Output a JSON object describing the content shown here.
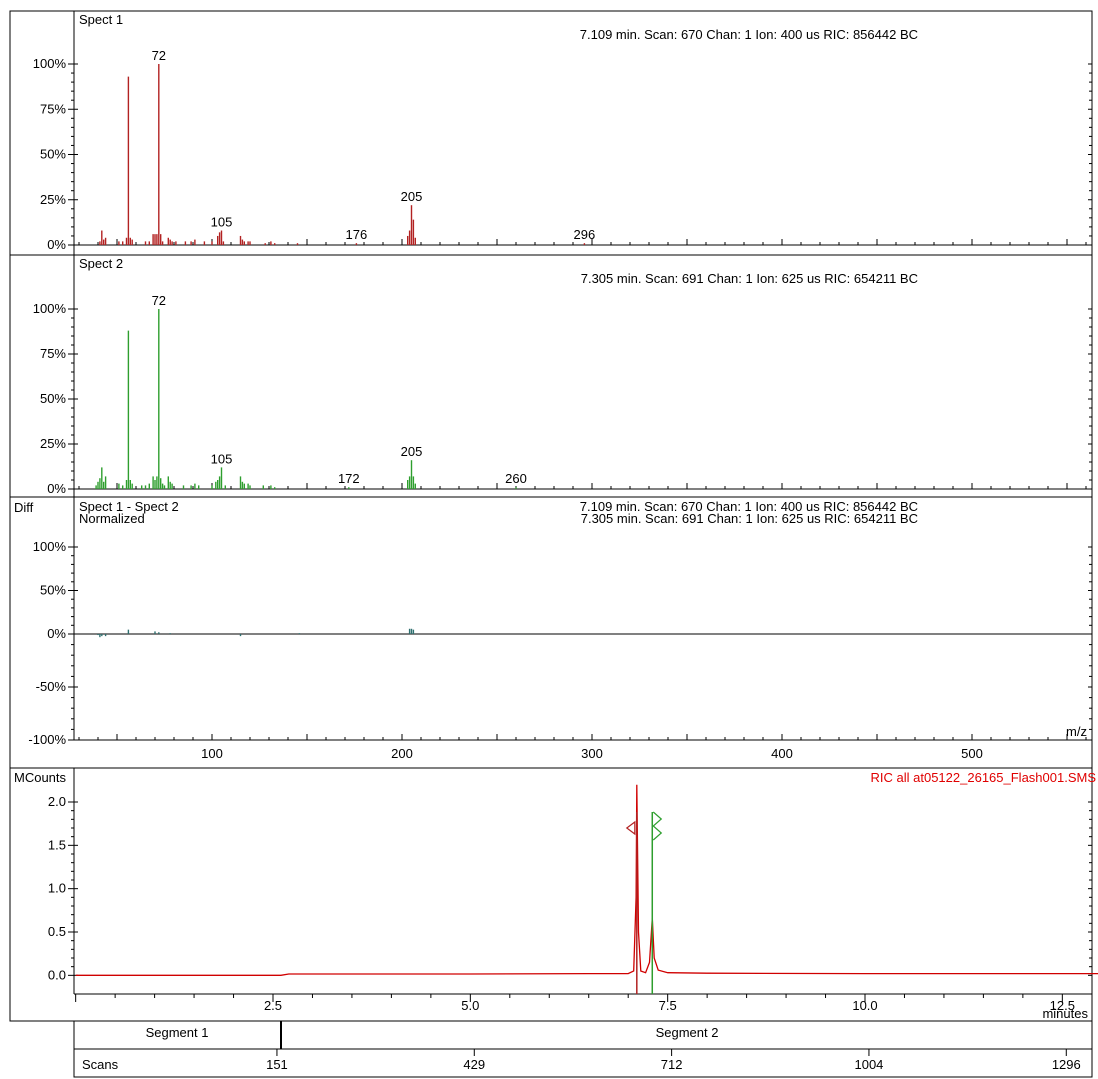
{
  "colors": {
    "spect1": "#b22222",
    "spect2": "#2e9e2e",
    "diff": "#2f6f6f",
    "ric_line": "#d00000",
    "ric_label": "#e00000"
  },
  "panels": {
    "spect1": {
      "label": "Spect 1",
      "info": "7.109 min. Scan: 670 Chan: 1 Ion: 400 us RIC: 856442 BC",
      "yticks": [
        "100%",
        "75%",
        "50%",
        "25%",
        "0%"
      ]
    },
    "spect2": {
      "label": "Spect 2",
      "info": "7.305 min. Scan: 691 Chan: 1 Ion: 625 us RIC: 654211 BC",
      "yticks": [
        "100%",
        "75%",
        "50%",
        "25%",
        "0%"
      ]
    },
    "diff": {
      "corner": "Diff",
      "label": "Spect 1 - Spect 2",
      "sublabel": "Normalized",
      "info1": "7.109 min. Scan: 670 Chan: 1 Ion: 400 us RIC: 856442 BC",
      "info2": "7.305 min. Scan: 691 Chan: 1 Ion: 625 us RIC: 654211 BC",
      "yticks": [
        "100%",
        "50%",
        "0%",
        "-50%",
        "-100%"
      ],
      "xticks": [
        "100",
        "200",
        "300",
        "400",
        "500"
      ],
      "xunit": "m/z"
    },
    "ric": {
      "ylabel": "MCounts",
      "label": "RIC all at05122_26165_Flash001.SMS",
      "yticks": [
        "2.0",
        "1.5",
        "1.0",
        "0.5",
        "0.0"
      ],
      "xticks": [
        "2.5",
        "5.0",
        "7.5",
        "10.0",
        "12.5"
      ],
      "xunit": "minutes"
    }
  },
  "segments": {
    "seg1": "Segment 1",
    "seg2": "Segment 2",
    "scans_label": "Scans",
    "scan_ticks": [
      "151",
      "429",
      "712",
      "1004",
      "1296"
    ]
  },
  "chart_data": [
    {
      "type": "bar",
      "name": "Spect 1",
      "xlim": [
        30,
        565
      ],
      "ylim": [
        0,
        100
      ],
      "peak_labels": [
        {
          "x": 72,
          "text": "72"
        },
        {
          "x": 105,
          "text": "105"
        },
        {
          "x": 176,
          "text": "176"
        },
        {
          "x": 205,
          "text": "205"
        },
        {
          "x": 296,
          "text": "296"
        }
      ],
      "x": [
        41,
        42,
        43,
        44,
        51,
        53,
        55,
        56,
        57,
        58,
        65,
        67,
        69,
        70,
        71,
        72,
        73,
        74,
        77,
        78,
        79,
        81,
        86,
        89,
        91,
        96,
        100,
        103,
        104,
        105,
        106,
        115,
        116,
        117,
        119,
        120,
        128,
        131,
        133,
        145,
        176,
        203,
        204,
        205,
        206,
        207,
        296
      ],
      "values": [
        2,
        8,
        3,
        4,
        2,
        2,
        4,
        93,
        4,
        3,
        2,
        2,
        6,
        6,
        6,
        100,
        6,
        2,
        4,
        3,
        2,
        2,
        2,
        2,
        3,
        2,
        2,
        5,
        7,
        8,
        2,
        5,
        3,
        2,
        2,
        2,
        1,
        2,
        1,
        1,
        1,
        5,
        8,
        22,
        14,
        4,
        1
      ]
    },
    {
      "type": "bar",
      "name": "Spect 2",
      "xlim": [
        30,
        565
      ],
      "ylim": [
        0,
        100
      ],
      "peak_labels": [
        {
          "x": 72,
          "text": "72"
        },
        {
          "x": 105,
          "text": "105"
        },
        {
          "x": 172,
          "text": "172"
        },
        {
          "x": 205,
          "text": "205"
        },
        {
          "x": 260,
          "text": "260"
        }
      ],
      "x": [
        39,
        40,
        41,
        42,
        43,
        44,
        51,
        53,
        55,
        56,
        57,
        58,
        63,
        65,
        67,
        69,
        70,
        71,
        72,
        73,
        74,
        75,
        77,
        78,
        79,
        85,
        89,
        91,
        93,
        100,
        102,
        103,
        104,
        105,
        107,
        115,
        116,
        117,
        119,
        120,
        127,
        131,
        133,
        172,
        203,
        204,
        205,
        206,
        207,
        260
      ],
      "values": [
        2,
        4,
        6,
        12,
        4,
        7,
        3,
        2,
        5,
        88,
        5,
        3,
        2,
        2,
        3,
        7,
        5,
        7,
        100,
        6,
        3,
        2,
        7,
        4,
        3,
        2,
        2,
        3,
        2,
        2,
        4,
        5,
        7,
        12,
        2,
        7,
        4,
        3,
        3,
        2,
        2,
        2,
        1,
        1,
        5,
        7,
        16,
        7,
        3,
        1
      ]
    },
    {
      "type": "bar",
      "name": "Spect 1 - Spect 2",
      "xlim": [
        30,
        565
      ],
      "ylim": [
        -100,
        100
      ],
      "xlabel": "m/z",
      "x": [
        40,
        41,
        42,
        44,
        56,
        70,
        72,
        78,
        115,
        146,
        204,
        205,
        206
      ],
      "values": [
        -1,
        -3,
        -2,
        -2,
        5,
        3,
        2,
        1,
        -2,
        1,
        6,
        6,
        5
      ]
    },
    {
      "type": "line",
      "name": "RIC all at05122_26165_Flash001.SMS",
      "xlim": [
        0,
        13.0
      ],
      "ylim": [
        -0.1,
        2.35
      ],
      "xlabel": "minutes",
      "ylabel": "MCounts",
      "markers": [
        {
          "x": 7.109,
          "color": "#b22222"
        },
        {
          "x": 7.305,
          "color": "#2e9e2e"
        }
      ],
      "x": [
        0.0,
        2.6,
        2.7,
        5.0,
        6.5,
        7.0,
        7.07,
        7.1,
        7.109,
        7.13,
        7.16,
        7.22,
        7.27,
        7.305,
        7.33,
        7.38,
        7.5,
        8.0,
        10.0,
        13.0
      ],
      "y": [
        0.0,
        0.0,
        0.015,
        0.015,
        0.02,
        0.02,
        0.05,
        0.9,
        2.2,
        0.5,
        0.05,
        0.03,
        0.15,
        0.66,
        0.2,
        0.06,
        0.03,
        0.025,
        0.02,
        0.02
      ]
    }
  ]
}
